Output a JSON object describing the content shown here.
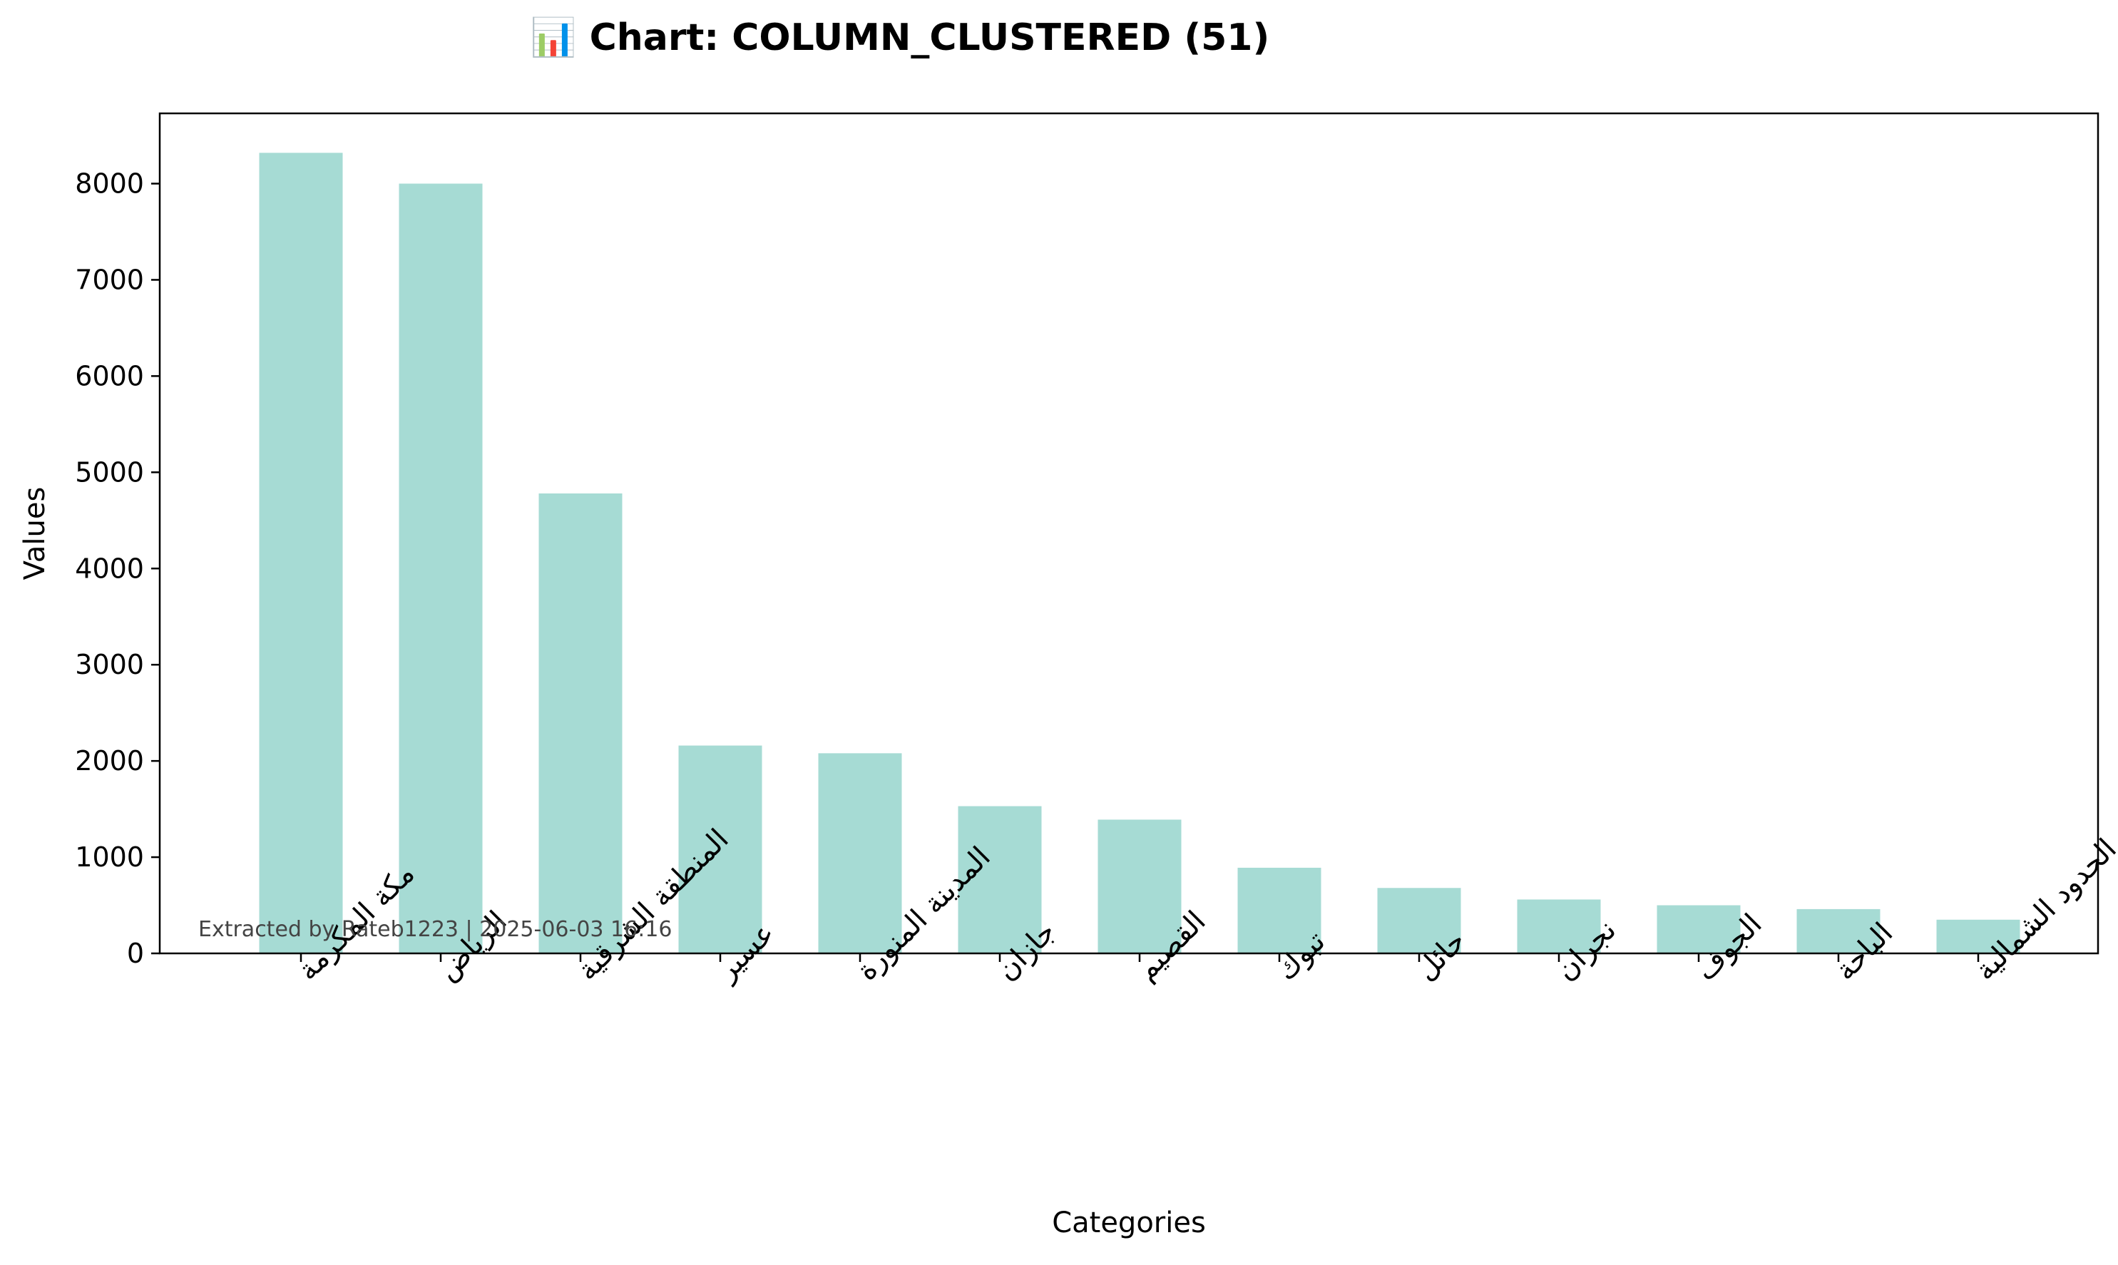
{
  "chart_data": {
    "type": "bar",
    "title": "📊 Chart: COLUMN_CLUSTERED (51)",
    "xlabel": "Categories",
    "ylabel": "Values",
    "categories": [
      "مكة المكرمة",
      "الرياض",
      "المنطقة الشرقية",
      "عسير",
      "المدينة المنورة",
      "جازان",
      "القصيم",
      "تبوك",
      "حائل",
      "نجران",
      "الجوف",
      "الباحة",
      "الحدود الشمالية"
    ],
    "values": [
      8320,
      8000,
      4780,
      2160,
      2080,
      1530,
      1390,
      890,
      680,
      560,
      500,
      460,
      350
    ],
    "ylim": [
      0,
      8730
    ],
    "yticks": [
      0,
      1000,
      2000,
      3000,
      4000,
      5000,
      6000,
      7000,
      8000
    ],
    "grid": false,
    "legend": "none",
    "bar_color": "#a6dbd4",
    "annotation": "Extracted by Rateb1223 | 2025-06-03 16:16"
  }
}
